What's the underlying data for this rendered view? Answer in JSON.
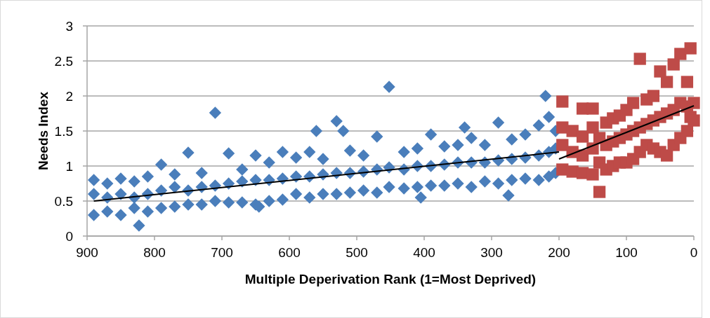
{
  "chart_data": {
    "type": "scatter",
    "xlabel": "Multiple Deperivation Rank (1=Most Deprived)",
    "ylabel": "Needs Index",
    "xlim": [
      900,
      0
    ],
    "xticks": [
      900,
      800,
      700,
      600,
      500,
      400,
      300,
      200,
      100,
      0
    ],
    "ylim": [
      0,
      3
    ],
    "yticks": [
      0,
      0.5,
      1,
      1.5,
      2,
      2.5,
      3
    ],
    "grid": "y",
    "series": [
      {
        "marker": "diamond",
        "color": "#4a7ebb",
        "x": [
          890,
          890,
          890,
          870,
          870,
          870,
          850,
          850,
          850,
          830,
          830,
          830,
          810,
          810,
          810,
          790,
          790,
          790,
          770,
          770,
          770,
          750,
          750,
          750,
          730,
          730,
          730,
          710,
          710,
          710,
          690,
          690,
          690,
          670,
          670,
          670,
          650,
          650,
          650,
          630,
          630,
          630,
          610,
          610,
          610,
          590,
          590,
          590,
          570,
          570,
          570,
          550,
          550,
          550,
          530,
          530,
          530,
          510,
          510,
          510,
          490,
          490,
          490,
          470,
          470,
          470,
          452,
          452,
          452,
          430,
          430,
          430,
          410,
          410,
          410,
          390,
          390,
          390,
          370,
          370,
          370,
          350,
          350,
          350,
          330,
          330,
          330,
          310,
          310,
          310,
          290,
          290,
          290,
          270,
          270,
          270,
          250,
          250,
          250,
          230,
          230,
          230,
          215,
          215,
          215,
          205,
          205,
          205,
          220,
          823,
          405,
          275,
          645,
          560,
          520,
          340
        ],
        "values": [
          0.3,
          0.6,
          0.8,
          0.35,
          0.55,
          0.75,
          0.3,
          0.6,
          0.82,
          0.4,
          0.55,
          0.78,
          0.35,
          0.6,
          0.85,
          0.4,
          0.65,
          1.02,
          0.42,
          0.7,
          0.88,
          0.45,
          0.65,
          1.19,
          0.45,
          0.7,
          0.9,
          0.5,
          0.72,
          1.76,
          0.48,
          0.75,
          1.18,
          0.48,
          0.78,
          0.95,
          0.45,
          0.8,
          1.15,
          0.5,
          0.8,
          1.05,
          0.52,
          0.82,
          1.2,
          0.6,
          0.85,
          1.12,
          0.55,
          0.85,
          1.2,
          0.6,
          0.88,
          1.1,
          0.6,
          0.9,
          1.64,
          0.62,
          0.9,
          1.22,
          0.65,
          0.92,
          1.15,
          0.62,
          0.95,
          1.42,
          0.7,
          0.98,
          2.13,
          0.68,
          0.95,
          1.2,
          0.7,
          1.0,
          1.25,
          0.72,
          1.0,
          1.45,
          0.72,
          1.02,
          1.28,
          0.75,
          1.05,
          1.3,
          0.7,
          1.05,
          1.4,
          0.78,
          1.05,
          1.3,
          0.75,
          1.08,
          1.62,
          0.8,
          1.1,
          1.38,
          0.82,
          1.12,
          1.45,
          0.8,
          1.15,
          1.58,
          0.85,
          1.2,
          1.7,
          0.9,
          1.25,
          1.5,
          2.0,
          0.15,
          0.55,
          0.58,
          0.42,
          1.5,
          1.5,
          1.55
        ]
      },
      {
        "marker": "square",
        "color": "#be4b48",
        "x": [
          195,
          195,
          195,
          195,
          180,
          180,
          180,
          165,
          165,
          165,
          165,
          150,
          150,
          150,
          150,
          140,
          140,
          140,
          130,
          130,
          130,
          120,
          120,
          120,
          110,
          110,
          110,
          100,
          100,
          100,
          90,
          90,
          90,
          80,
          80,
          80,
          70,
          70,
          70,
          60,
          60,
          60,
          50,
          50,
          50,
          40,
          40,
          40,
          30,
          30,
          30,
          20,
          20,
          20,
          10,
          10,
          10,
          5,
          5,
          0,
          0
        ],
        "values": [
          0.95,
          1.3,
          1.55,
          1.92,
          0.92,
          1.2,
          1.5,
          0.9,
          1.15,
          1.42,
          1.82,
          0.88,
          1.25,
          1.55,
          1.82,
          0.63,
          1.05,
          1.4,
          0.95,
          1.3,
          1.62,
          1.0,
          1.35,
          1.68,
          1.05,
          1.4,
          1.72,
          1.05,
          1.45,
          1.8,
          1.1,
          1.5,
          1.9,
          1.2,
          1.55,
          2.53,
          1.3,
          1.6,
          1.95,
          1.25,
          1.65,
          2.0,
          1.2,
          1.7,
          2.35,
          1.15,
          1.75,
          2.2,
          1.3,
          1.8,
          2.45,
          1.4,
          1.9,
          2.6,
          1.5,
          1.85,
          2.2,
          1.7,
          2.68,
          1.65,
          1.9
        ]
      },
      {
        "type": "line",
        "marker": "none",
        "color": "#000000",
        "x": [
          890,
          200
        ],
        "values": [
          0.5,
          1.2
        ]
      },
      {
        "type": "line",
        "marker": "none",
        "color": "#000000",
        "x": [
          200,
          0
        ],
        "values": [
          1.1,
          1.86
        ]
      }
    ]
  }
}
